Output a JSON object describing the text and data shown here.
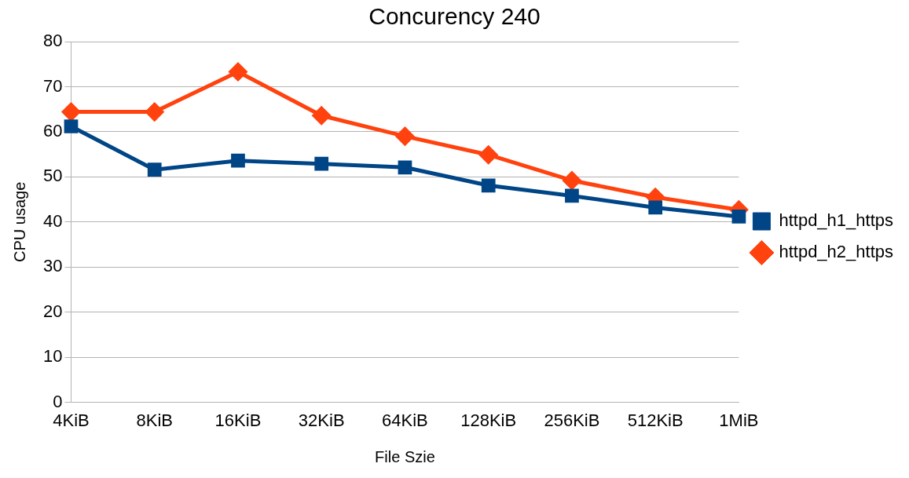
{
  "chart_data": {
    "type": "line",
    "title": "Concurency 240",
    "xlabel": "File Szie",
    "ylabel": "CPU usage",
    "categories": [
      "4KiB",
      "8KiB",
      "16KiB",
      "32KiB",
      "64KiB",
      "128KiB",
      "256KiB",
      "512KiB",
      "1MiB"
    ],
    "series": [
      {
        "name": "httpd_h1_https",
        "color": "#004586",
        "marker": "square",
        "values": [
          61.2,
          51.6,
          53.6,
          52.9,
          52.1,
          48.1,
          45.8,
          43.2,
          41.2
        ]
      },
      {
        "name": "httpd_h2_https",
        "color": "#ff420e",
        "marker": "diamond",
        "values": [
          64.4,
          64.4,
          73.3,
          63.6,
          59.0,
          54.9,
          49.2,
          45.5,
          42.7
        ]
      }
    ],
    "ylim": [
      0,
      80
    ],
    "yticks": [
      0,
      10,
      20,
      30,
      40,
      50,
      60,
      70,
      80
    ],
    "grid": "y",
    "legend": "right",
    "line_style": "solid"
  }
}
